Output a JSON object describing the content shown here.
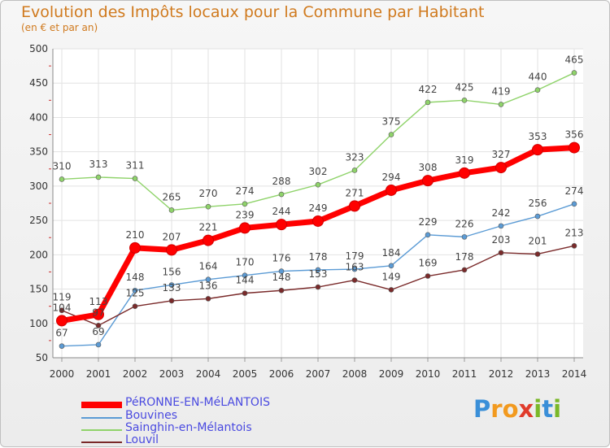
{
  "chart_data": {
    "type": "line",
    "title": "Evolution des Impôts locaux pour la Commune par Habitant",
    "subtitle": "(en € et par an)",
    "xlabel": "",
    "ylabel": "",
    "ylim": [
      50,
      500
    ],
    "yticks": [
      50,
      100,
      150,
      200,
      250,
      300,
      350,
      400,
      450,
      500
    ],
    "categories": [
      "2000",
      "2001",
      "2002",
      "2003",
      "2004",
      "2005",
      "2006",
      "2007",
      "2008",
      "2009",
      "2010",
      "2011",
      "2012",
      "2013",
      "2014"
    ],
    "grid": true,
    "legend_position": "bottom-left",
    "series": [
      {
        "name": "PéRONNE-EN-MéLANTOIS",
        "color": "#ff0000",
        "values": [
          104,
          113,
          210,
          207,
          221,
          239,
          244,
          249,
          271,
          294,
          308,
          319,
          327,
          353,
          356
        ]
      },
      {
        "name": "Bouvines",
        "color": "#5b9bd5",
        "values": [
          67,
          69,
          148,
          156,
          164,
          170,
          176,
          178,
          179,
          184,
          229,
          226,
          242,
          256,
          274
        ]
      },
      {
        "name": "Sainghin-en-Mélantois",
        "color": "#8fd36a",
        "values": [
          310,
          313,
          311,
          265,
          270,
          274,
          288,
          302,
          323,
          375,
          422,
          425,
          419,
          440,
          465
        ]
      },
      {
        "name": "Louvil",
        "color": "#7a2a2a",
        "values": [
          119,
          97,
          125,
          133,
          136,
          144,
          148,
          153,
          163,
          149,
          169,
          178,
          203,
          201,
          213
        ]
      }
    ]
  },
  "logo": {
    "letters": [
      "P",
      "r",
      "o",
      "x",
      "i",
      "t",
      "i"
    ]
  }
}
